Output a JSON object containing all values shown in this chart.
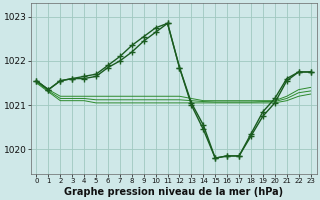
{
  "background_color": "#cfe8e8",
  "grid_color": "#a0c8c0",
  "xlabel": "Graphe pression niveau de la mer (hPa)",
  "xlabel_fontsize": 7,
  "yticks": [
    1020,
    1021,
    1022,
    1023
  ],
  "xtick_labels": [
    "0",
    "1",
    "2",
    "3",
    "4",
    "5",
    "6",
    "7",
    "8",
    "9",
    "10",
    "11",
    "12",
    "13",
    "14",
    "15",
    "16",
    "17",
    "18",
    "19",
    "20",
    "21",
    "22",
    "23"
  ],
  "xlim": [
    -0.5,
    23.5
  ],
  "ylim": [
    1019.45,
    1023.3
  ],
  "series": [
    {
      "x": [
        0,
        1,
        2,
        3,
        4,
        5,
        6,
        7,
        8,
        9,
        10,
        11,
        12,
        13,
        14,
        15,
        16,
        17,
        18,
        19,
        20,
        21,
        22,
        23
      ],
      "y": [
        1021.55,
        1021.35,
        1021.55,
        1021.6,
        1021.6,
        1021.65,
        1021.85,
        1022.0,
        1022.2,
        1022.45,
        1022.65,
        1022.85,
        1021.85,
        1021.05,
        1020.55,
        1019.8,
        1019.85,
        1019.85,
        1020.35,
        1020.85,
        1021.15,
        1021.6,
        1021.75,
        1021.75
      ],
      "color": "#1a5c20",
      "linewidth": 1.0,
      "marker": "+",
      "markersize": 4,
      "markeredgewidth": 1.0,
      "zorder": 4
    },
    {
      "x": [
        0,
        1,
        2,
        3,
        4,
        5,
        6,
        7,
        8,
        9,
        10,
        11,
        12,
        13,
        14,
        15,
        16,
        17,
        18,
        19,
        20,
        21,
        22,
        23
      ],
      "y": [
        1021.55,
        1021.35,
        1021.55,
        1021.6,
        1021.65,
        1021.7,
        1021.9,
        1022.1,
        1022.35,
        1022.55,
        1022.75,
        1022.85,
        1021.85,
        1021.0,
        1020.45,
        1019.8,
        1019.85,
        1019.85,
        1020.3,
        1020.75,
        1021.05,
        1021.55,
        1021.75,
        1021.75
      ],
      "color": "#1a5c20",
      "linewidth": 1.0,
      "marker": "+",
      "markersize": 4,
      "markeredgewidth": 1.0,
      "zorder": 3
    },
    {
      "x": [
        0,
        1,
        2,
        3,
        4,
        5,
        6,
        7,
        8,
        9,
        10,
        11,
        12,
        13,
        14,
        15,
        16,
        17,
        18,
        19,
        20,
        21,
        22,
        23
      ],
      "y": [
        1021.55,
        1021.35,
        1021.2,
        1021.2,
        1021.2,
        1021.2,
        1021.2,
        1021.2,
        1021.2,
        1021.2,
        1021.2,
        1021.2,
        1021.2,
        1021.15,
        1021.1,
        1021.1,
        1021.1,
        1021.1,
        1021.1,
        1021.1,
        1021.1,
        1021.2,
        1021.35,
        1021.4
      ],
      "color": "#2d8a2d",
      "linewidth": 0.7,
      "marker": null,
      "markersize": 0,
      "markeredgewidth": 0,
      "zorder": 2
    },
    {
      "x": [
        0,
        1,
        2,
        3,
        4,
        5,
        6,
        7,
        8,
        9,
        10,
        11,
        12,
        13,
        14,
        15,
        16,
        17,
        18,
        19,
        20,
        21,
        22,
        23
      ],
      "y": [
        1021.5,
        1021.3,
        1021.1,
        1021.1,
        1021.1,
        1021.05,
        1021.05,
        1021.05,
        1021.05,
        1021.05,
        1021.05,
        1021.05,
        1021.05,
        1021.05,
        1021.05,
        1021.05,
        1021.05,
        1021.05,
        1021.05,
        1021.05,
        1021.05,
        1021.1,
        1021.2,
        1021.25
      ],
      "color": "#2d8a2d",
      "linewidth": 0.7,
      "marker": null,
      "markersize": 0,
      "markeredgewidth": 0,
      "zorder": 1
    },
    {
      "x": [
        0,
        1,
        2,
        3,
        4,
        5,
        6,
        7,
        8,
        9,
        10,
        11,
        12,
        13,
        14,
        15,
        16,
        17,
        18,
        19,
        20,
        21,
        22,
        23
      ],
      "y": [
        1021.52,
        1021.32,
        1021.15,
        1021.15,
        1021.15,
        1021.12,
        1021.12,
        1021.12,
        1021.12,
        1021.12,
        1021.12,
        1021.12,
        1021.12,
        1021.1,
        1021.08,
        1021.07,
        1021.07,
        1021.07,
        1021.07,
        1021.08,
        1021.08,
        1021.15,
        1021.28,
        1021.32
      ],
      "color": "#2d8a2d",
      "linewidth": 0.7,
      "marker": null,
      "markersize": 0,
      "markeredgewidth": 0,
      "zorder": 1
    }
  ]
}
